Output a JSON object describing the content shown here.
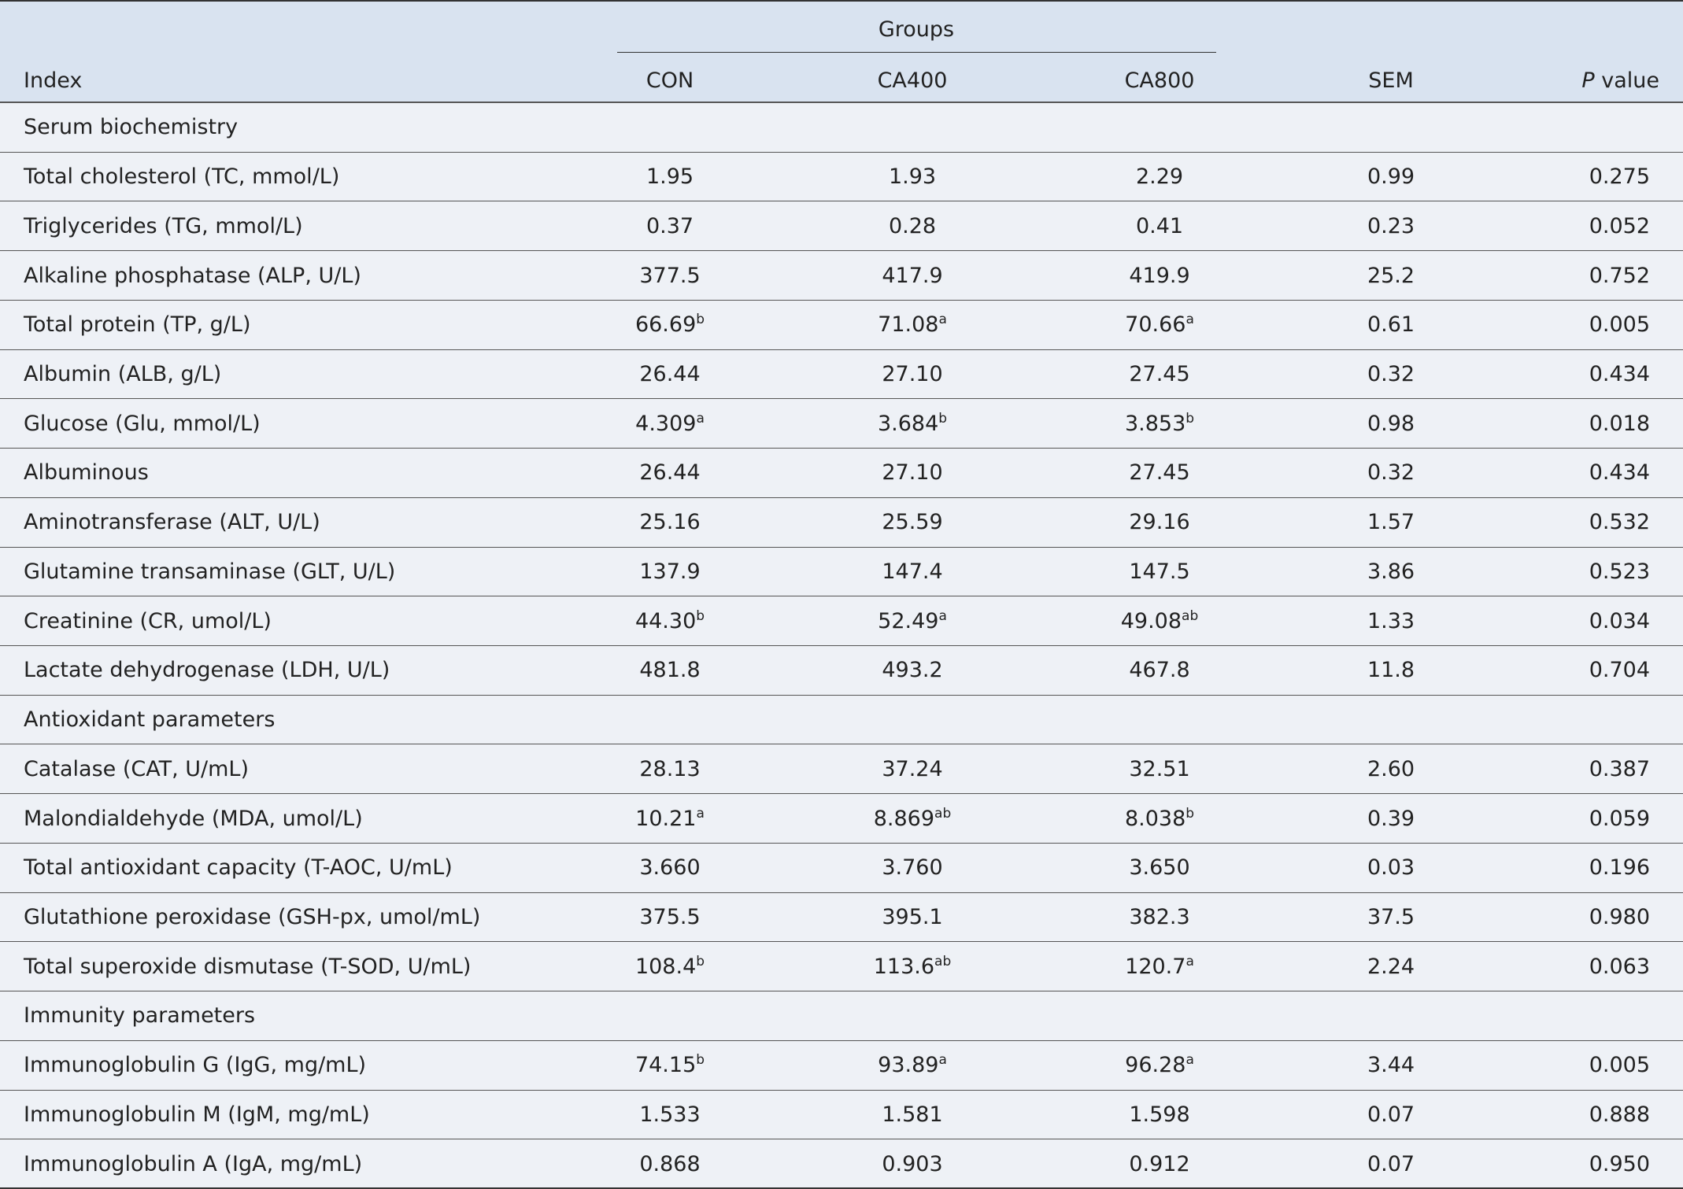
{
  "header": {
    "groups": "Groups",
    "columns": [
      "Index",
      "CON",
      "CA400",
      "CA800",
      "SEM",
      {
        "italic": "P",
        "text": "value"
      }
    ]
  },
  "rows": [
    [
      "Serum biochemistry"
    ],
    [
      "Total cholesterol (TC, mmol/L)",
      "1.95",
      "1.93",
      "2.29",
      "0.99",
      "0.275"
    ],
    [
      "Triglycerides (TG, mmol/L)",
      "0.37",
      "0.28",
      "0.41",
      "0.23",
      "0.052"
    ],
    [
      "Alkaline phosphatase (ALP, U/L)",
      "377.5",
      "417.9",
      "419.9",
      "25.2",
      "0.752"
    ],
    [
      "Total protein (TP, g/L)",
      {
        "value": "66.69",
        "sup": "b"
      },
      {
        "value": "71.08",
        "sup": "a"
      },
      {
        "value": "70.66",
        "sup": "a"
      },
      "0.61",
      "0.005"
    ],
    [
      "Albumin (ALB, g/L)",
      "26.44",
      "27.10",
      "27.45",
      "0.32",
      "0.434"
    ],
    [
      "Glucose (Glu, mmol/L)",
      {
        "value": "4.309",
        "sup": "a"
      },
      {
        "value": "3.684",
        "sup": "b"
      },
      {
        "value": "3.853",
        "sup": "b"
      },
      "0.98",
      "0.018"
    ],
    [
      "Albuminous",
      "26.44",
      "27.10",
      "27.45",
      "0.32",
      "0.434"
    ],
    [
      "Aminotransferase (ALT, U/L)",
      "25.16",
      "25.59",
      "29.16",
      "1.57",
      "0.532"
    ],
    [
      "Glutamine transaminase (GLT, U/L)",
      "137.9",
      "147.4",
      "147.5",
      "3.86",
      "0.523"
    ],
    [
      "Creatinine (CR, umol/L)",
      {
        "value": "44.30",
        "sup": "b"
      },
      {
        "value": "52.49",
        "sup": "a"
      },
      {
        "value": "49.08",
        "sup": "ab"
      },
      "1.33",
      "0.034"
    ],
    [
      "Lactate dehydrogenase (LDH, U/L)",
      "481.8",
      "493.2",
      "467.8",
      "11.8",
      "0.704"
    ],
    [
      "Antioxidant parameters"
    ],
    [
      "Catalase (CAT, U/mL)",
      "28.13",
      "37.24",
      "32.51",
      "2.60",
      "0.387"
    ],
    [
      "Malondialdehyde (MDA, umol/L)",
      {
        "value": "10.21",
        "sup": "a"
      },
      {
        "value": "8.869",
        "sup": "ab"
      },
      {
        "value": "8.038",
        "sup": "b"
      },
      "0.39",
      "0.059"
    ],
    [
      "Total antioxidant capacity (T-AOC, U/mL)",
      "3.660",
      "3.760",
      "3.650",
      "0.03",
      "0.196"
    ],
    [
      "Glutathione peroxidase (GSH-px, umol/mL)",
      "375.5",
      "395.1",
      "382.3",
      "37.5",
      "0.980"
    ],
    [
      "Total superoxide dismutase (T-SOD, U/mL)",
      {
        "value": "108.4",
        "sup": "b"
      },
      {
        "value": "113.6",
        "sup": "ab"
      },
      {
        "value": "120.7",
        "sup": "a"
      },
      "2.24",
      "0.063"
    ],
    [
      "Immunity parameters"
    ],
    [
      "Immunoglobulin G (IgG, mg/mL)",
      {
        "value": "74.15",
        "sup": "b"
      },
      {
        "value": "93.89",
        "sup": "a"
      },
      {
        "value": "96.28",
        "sup": "a"
      },
      "3.44",
      "0.005"
    ],
    [
      "Immunoglobulin M (IgM, mg/mL)",
      "1.533",
      "1.581",
      "1.598",
      "0.07",
      "0.888"
    ],
    [
      "Immunoglobulin A (IgA, mg/mL)",
      "0.868",
      "0.903",
      "0.912",
      "0.07",
      "0.950"
    ]
  ]
}
